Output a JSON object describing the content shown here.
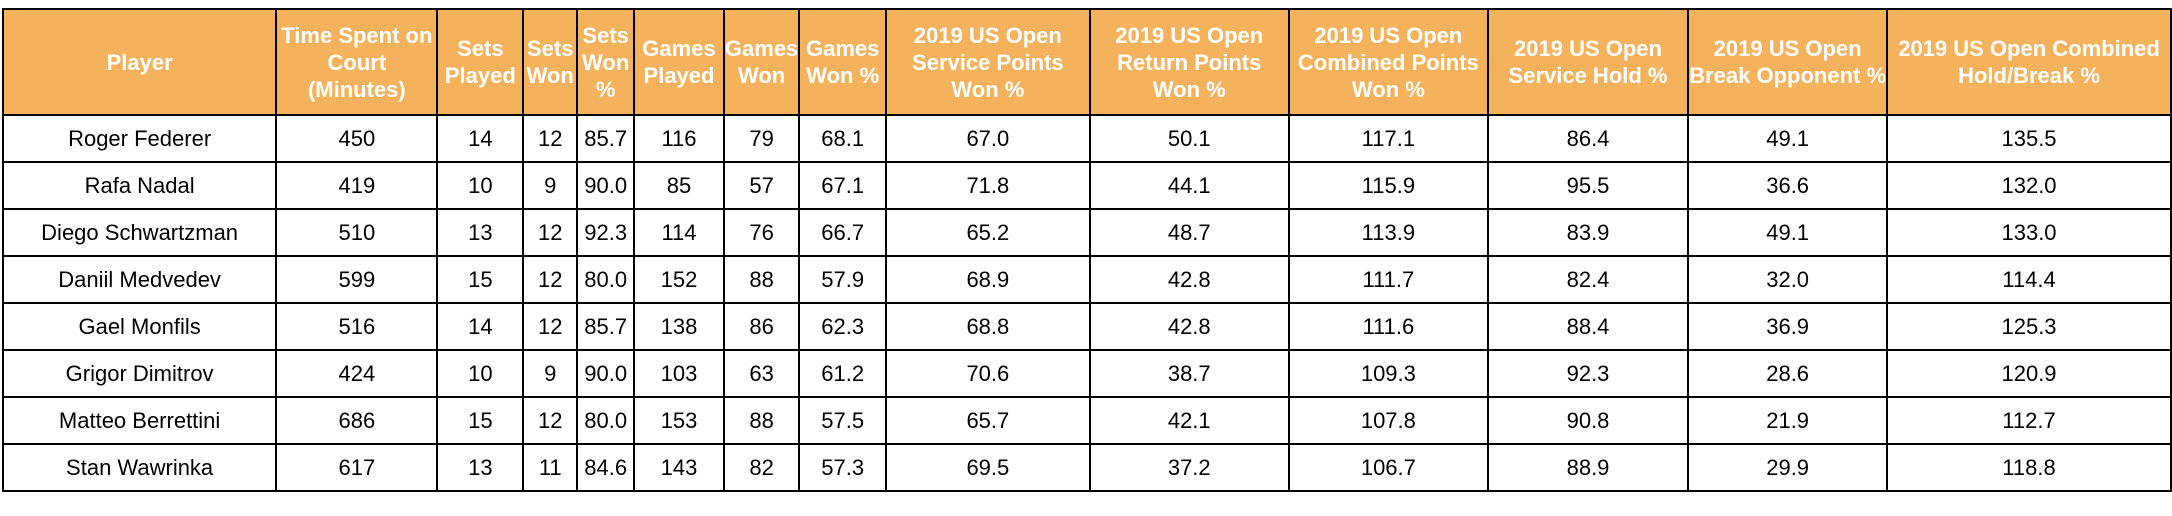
{
  "chart_data": {
    "type": "table",
    "headers": [
      "Player",
      "Time Spent on Court (Minutes)",
      "Sets Played",
      "Sets Won",
      "Sets Won %",
      "Games Played",
      "Games Won",
      "Games Won %",
      "2019 US Open Service Points Won %",
      "2019 US Open Return Points Won %",
      "2019 US Open Combined Points Won %",
      "2019 US Open Service Hold %",
      "2019 US Open Break Opponent %",
      "2019 US Open Combined Hold/Break %"
    ],
    "rows": [
      [
        "Roger Federer",
        "450",
        "14",
        "12",
        "85.7",
        "116",
        "79",
        "68.1",
        "67.0",
        "50.1",
        "117.1",
        "86.4",
        "49.1",
        "135.5"
      ],
      [
        "Rafa Nadal",
        "419",
        "10",
        "9",
        "90.0",
        "85",
        "57",
        "67.1",
        "71.8",
        "44.1",
        "115.9",
        "95.5",
        "36.6",
        "132.0"
      ],
      [
        "Diego Schwartzman",
        "510",
        "13",
        "12",
        "92.3",
        "114",
        "76",
        "66.7",
        "65.2",
        "48.7",
        "113.9",
        "83.9",
        "49.1",
        "133.0"
      ],
      [
        "Daniil Medvedev",
        "599",
        "15",
        "12",
        "80.0",
        "152",
        "88",
        "57.9",
        "68.9",
        "42.8",
        "111.7",
        "82.4",
        "32.0",
        "114.4"
      ],
      [
        "Gael Monfils",
        "516",
        "14",
        "12",
        "85.7",
        "138",
        "86",
        "62.3",
        "68.8",
        "42.8",
        "111.6",
        "88.4",
        "36.9",
        "125.3"
      ],
      [
        "Grigor Dimitrov",
        "424",
        "10",
        "9",
        "90.0",
        "103",
        "63",
        "61.2",
        "70.6",
        "38.7",
        "109.3",
        "92.3",
        "28.6",
        "120.9"
      ],
      [
        "Matteo Berrettini",
        "686",
        "15",
        "12",
        "80.0",
        "153",
        "88",
        "57.5",
        "65.7",
        "42.1",
        "107.8",
        "90.8",
        "21.9",
        "112.7"
      ],
      [
        "Stan Wawrinka",
        "617",
        "13",
        "11",
        "84.6",
        "143",
        "82",
        "57.3",
        "69.5",
        "37.2",
        "106.7",
        "88.9",
        "29.9",
        "118.8"
      ]
    ]
  },
  "colors": {
    "header_background": "#f4b25c",
    "header_text": "#ffffff",
    "border": "#000000"
  }
}
